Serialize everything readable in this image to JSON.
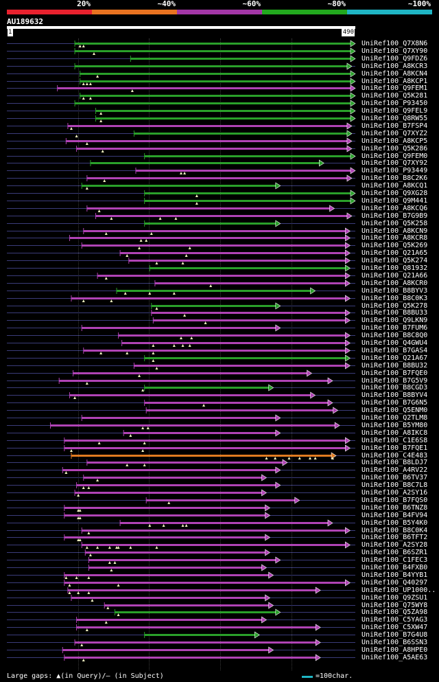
{
  "legend": {
    "segments": [
      {
        "label": "20%",
        "color": "#e8212e"
      },
      {
        "label": "~40%",
        "color": "#e87220"
      },
      {
        "label": "~60%",
        "color": "#a236a6"
      },
      {
        "label": "~80%",
        "color": "#22a81e"
      },
      {
        "label": "~100%",
        "color": "#1fb5c4"
      }
    ]
  },
  "query": {
    "id": "AU189632",
    "start_label": "1",
    "end_label": "490",
    "length": 490
  },
  "colors": {
    "purple": "#b043b5",
    "green": "#2aa02a",
    "orange": "#e07b20",
    "gap": "#3b3c7a",
    "triangle": "#f0f0c0",
    "scale": "#1fb5c4"
  },
  "hits": [
    {
      "label": "UniRef100_Q7X8N6",
      "color": "green",
      "start": 0.195,
      "end": 1.0,
      "arrow": true,
      "ticks": [
        0.21,
        0.22
      ]
    },
    {
      "label": "UniRef100_Q7XY90",
      "color": "green",
      "start": 0.195,
      "end": 1.0,
      "arrow": true,
      "ticks": [
        0.25
      ]
    },
    {
      "label": "UniRef100_Q9FDZ6",
      "color": "green",
      "start": 0.355,
      "end": 1.0,
      "arrow": true,
      "ticks": []
    },
    {
      "label": "UniRef100_A8KCR3",
      "color": "green",
      "start": 0.195,
      "end": 0.99,
      "arrow": true,
      "ticks": []
    },
    {
      "label": "UniRef100_A8KCN4",
      "color": "green",
      "start": 0.21,
      "end": 1.0,
      "arrow": true,
      "ticks": [
        0.26
      ]
    },
    {
      "label": "UniRef100_A8KCP1",
      "color": "green",
      "start": 0.21,
      "end": 1.0,
      "arrow": true,
      "ticks": [
        0.22,
        0.23,
        0.24
      ]
    },
    {
      "label": "UniRef100_Q9FEM1",
      "color": "purple",
      "start": 0.145,
      "end": 1.0,
      "arrow": true,
      "ticks": [
        0.36
      ]
    },
    {
      "label": "UniRef100_Q5K281",
      "color": "green",
      "start": 0.21,
      "end": 1.0,
      "arrow": true,
      "ticks": [
        0.22,
        0.24
      ]
    },
    {
      "label": "UniRef100_P93450",
      "color": "green",
      "start": 0.195,
      "end": 1.0,
      "arrow": true,
      "ticks": []
    },
    {
      "label": "UniRef100_Q9FEL9",
      "color": "green",
      "start": 0.255,
      "end": 1.0,
      "arrow": true,
      "ticks": [
        0.27
      ]
    },
    {
      "label": "UniRef100_Q8RW55",
      "color": "green",
      "start": 0.255,
      "end": 1.0,
      "arrow": true,
      "ticks": [
        0.27
      ]
    },
    {
      "label": "UniRef100_B7FSP4",
      "color": "purple",
      "start": 0.175,
      "end": 0.99,
      "arrow": true,
      "ticks": [
        0.185
      ]
    },
    {
      "label": "UniRef100_Q7XYZ2",
      "color": "green",
      "start": 0.365,
      "end": 0.99,
      "arrow": true,
      "ticks": [
        0.2
      ]
    },
    {
      "label": "UniRef100_A8KCP5",
      "color": "purple",
      "start": 0.17,
      "end": 0.99,
      "arrow": true,
      "ticks": [
        0.23
      ]
    },
    {
      "label": "UniRef100_Q5K286",
      "color": "purple",
      "start": 0.2,
      "end": 0.99,
      "arrow": true,
      "ticks": [
        0.275
      ]
    },
    {
      "label": "UniRef100_Q9FEM0",
      "color": "green",
      "start": 0.395,
      "end": 1.0,
      "arrow": true,
      "ticks": []
    },
    {
      "label": "UniRef100_Q7XY92",
      "color": "green",
      "start": 0.24,
      "end": 0.91,
      "arrow": true,
      "ticks": []
    },
    {
      "label": "UniRef100_P93449",
      "color": "purple",
      "start": 0.37,
      "end": 1.0,
      "arrow": true,
      "ticks": [
        0.5,
        0.51
      ]
    },
    {
      "label": "UniRef100_B8C2K6",
      "color": "purple",
      "start": 0.23,
      "end": 0.99,
      "arrow": true,
      "ticks": [
        0.28
      ]
    },
    {
      "label": "UniRef100_A8KCQ1",
      "color": "green",
      "start": 0.215,
      "end": 0.785,
      "arrow": true,
      "ticks": [
        0.23
      ]
    },
    {
      "label": "UniRef100_Q9XG28",
      "color": "green",
      "start": 0.395,
      "end": 1.0,
      "arrow": true,
      "ticks": [
        0.545
      ]
    },
    {
      "label": "UniRef100_Q9M441",
      "color": "green",
      "start": 0.395,
      "end": 1.0,
      "arrow": true,
      "ticks": [
        0.545
      ]
    },
    {
      "label": "UniRef100_A8KCQ6",
      "color": "purple",
      "start": 0.23,
      "end": 0.94,
      "arrow": true,
      "ticks": [
        0.265
      ]
    },
    {
      "label": "UniRef100_B7G9B9",
      "color": "purple",
      "start": 0.255,
      "end": 0.99,
      "arrow": true,
      "ticks": [
        0.3,
        0.44,
        0.485
      ]
    },
    {
      "label": "UniRef100_Q5K258",
      "color": "green",
      "start": 0.395,
      "end": 0.785,
      "arrow": true,
      "ticks": []
    },
    {
      "label": "UniRef100_A8KCN9",
      "color": "purple",
      "start": 0.22,
      "end": 0.985,
      "arrow": true,
      "ticks": [
        0.285,
        0.415
      ]
    },
    {
      "label": "UniRef100_A8KCR8",
      "color": "purple",
      "start": 0.18,
      "end": 0.985,
      "arrow": true,
      "ticks": [
        0.385,
        0.4
      ]
    },
    {
      "label": "UniRef100_Q5K269",
      "color": "purple",
      "start": 0.215,
      "end": 0.985,
      "arrow": true,
      "ticks": [
        0.38,
        0.525
      ]
    },
    {
      "label": "UniRef100_Q21A65",
      "color": "purple",
      "start": 0.325,
      "end": 0.985,
      "arrow": true,
      "ticks": [
        0.345,
        0.515
      ]
    },
    {
      "label": "UniRef100_Q5K274",
      "color": "purple",
      "start": 0.35,
      "end": 0.985,
      "arrow": true,
      "ticks": [
        0.43,
        0.505
      ]
    },
    {
      "label": "UniRef100_Q81932",
      "color": "green",
      "start": 0.41,
      "end": 0.985,
      "arrow": true,
      "ticks": []
    },
    {
      "label": "UniRef100_Q21A66",
      "color": "purple",
      "start": 0.26,
      "end": 0.985,
      "arrow": true,
      "ticks": [
        0.285
      ]
    },
    {
      "label": "UniRef100_A8KCR0",
      "color": "purple",
      "start": 0.425,
      "end": 0.985,
      "arrow": true,
      "ticks": [
        0.585
      ]
    },
    {
      "label": "UniRef100_B8BYV3",
      "color": "green",
      "start": 0.315,
      "end": 0.885,
      "arrow": true,
      "ticks": [
        0.34,
        0.41,
        0.48
      ]
    },
    {
      "label": "UniRef100_B8C0K3",
      "color": "purple",
      "start": 0.185,
      "end": 0.985,
      "arrow": true,
      "ticks": [
        0.22,
        0.3
      ]
    },
    {
      "label": "UniRef100_Q5K278",
      "color": "green",
      "start": 0.415,
      "end": 0.785,
      "arrow": true,
      "ticks": [
        0.43
      ]
    },
    {
      "label": "UniRef100_B8BU33",
      "color": "purple",
      "start": 0.415,
      "end": 0.985,
      "arrow": true,
      "ticks": [
        0.51
      ]
    },
    {
      "label": "UniRef100_Q9LKN9",
      "color": "purple",
      "start": 0.42,
      "end": 0.985,
      "arrow": true,
      "ticks": [
        0.57
      ]
    },
    {
      "label": "UniRef100_B7FUM6",
      "color": "purple",
      "start": 0.215,
      "end": 0.785,
      "arrow": true,
      "ticks": []
    },
    {
      "label": "UniRef100_B8C8Q0",
      "color": "purple",
      "start": 0.32,
      "end": 0.985,
      "arrow": true,
      "ticks": [
        0.5,
        0.53
      ]
    },
    {
      "label": "UniRef100_Q4GWU4",
      "color": "purple",
      "start": 0.33,
      "end": 0.985,
      "arrow": true,
      "ticks": [
        0.42,
        0.48,
        0.505,
        0.525
      ]
    },
    {
      "label": "UniRef100_B7GAS4",
      "color": "purple",
      "start": 0.22,
      "end": 0.985,
      "arrow": true,
      "ticks": [
        0.27,
        0.345,
        0.42
      ]
    },
    {
      "label": "UniRef100_Q21A67",
      "color": "green",
      "start": 0.395,
      "end": 0.985,
      "arrow": true,
      "ticks": [
        0.42
      ]
    },
    {
      "label": "UniRef100_B8BU32",
      "color": "purple",
      "start": 0.365,
      "end": 0.985,
      "arrow": true,
      "ticks": [
        0.43
      ]
    },
    {
      "label": "UniRef100_B7FQE0",
      "color": "purple",
      "start": 0.19,
      "end": 0.875,
      "arrow": true,
      "ticks": [
        0.38
      ]
    },
    {
      "label": "UniRef100_B7G5V9",
      "color": "purple",
      "start": 0.15,
      "end": 0.935,
      "arrow": true,
      "ticks": [
        0.23
      ]
    },
    {
      "label": "UniRef100_B8CGD3",
      "color": "green",
      "start": 0.395,
      "end": 0.765,
      "arrow": true,
      "ticks": [
        0.39
      ]
    },
    {
      "label": "UniRef100_B8BYV4",
      "color": "purple",
      "start": 0.18,
      "end": 0.885,
      "arrow": true,
      "ticks": [
        0.195
      ]
    },
    {
      "label": "UniRef100_B7G6N5",
      "color": "purple",
      "start": 0.395,
      "end": 0.935,
      "arrow": true,
      "ticks": [
        0.565
      ]
    },
    {
      "label": "UniRef100_Q5ENM0",
      "color": "purple",
      "start": 0.4,
      "end": 0.95,
      "arrow": true,
      "ticks": []
    },
    {
      "label": "UniRef100_Q2TLM8",
      "color": "purple",
      "start": 0.215,
      "end": 0.785,
      "arrow": true,
      "ticks": []
    },
    {
      "label": "UniRef100_B5YM80",
      "color": "purple",
      "start": 0.125,
      "end": 0.955,
      "arrow": true,
      "ticks": [
        0.39,
        0.405
      ]
    },
    {
      "label": "UniRef100_A8IKC8",
      "color": "purple",
      "start": 0.335,
      "end": 0.785,
      "arrow": true,
      "ticks": [
        0.355
      ]
    },
    {
      "label": "UniRef100_C1E6S8",
      "color": "purple",
      "start": 0.165,
      "end": 0.985,
      "arrow": true,
      "ticks": [
        0.265,
        0.395
      ]
    },
    {
      "label": "UniRef100_B7FQE1",
      "color": "purple",
      "start": 0.165,
      "end": 0.985,
      "arrow": true,
      "ticks": [
        0.185,
        0.39
      ]
    },
    {
      "label": "UniRef100_C4E483",
      "color": "orange",
      "start": 0.185,
      "end": 0.945,
      "arrow": true,
      "ticks": [
        0.745,
        0.77,
        0.81,
        0.84,
        0.87,
        0.885,
        0.935
      ]
    },
    {
      "label": "UniRef100_B8LDJ7",
      "color": "purple",
      "start": 0.23,
      "end": 0.805,
      "arrow": true,
      "ticks": [
        0.345,
        0.395
      ]
    },
    {
      "label": "UniRef100_A4RV22",
      "color": "purple",
      "start": 0.16,
      "end": 0.785,
      "arrow": true,
      "ticks": [
        0.17
      ]
    },
    {
      "label": "UniRef100_B6TV37",
      "color": "purple",
      "start": 0.22,
      "end": 0.745,
      "arrow": true,
      "ticks": [
        0.26
      ]
    },
    {
      "label": "UniRef100_B8C7L8",
      "color": "purple",
      "start": 0.2,
      "end": 0.785,
      "arrow": true,
      "ticks": [
        0.22,
        0.235
      ]
    },
    {
      "label": "UniRef100_A2SY16",
      "color": "purple",
      "start": 0.195,
      "end": 0.745,
      "arrow": true,
      "ticks": [
        0.205
      ]
    },
    {
      "label": "UniRef100_B7FQS0",
      "color": "purple",
      "start": 0.4,
      "end": 0.84,
      "arrow": true,
      "ticks": [
        0.465
      ]
    },
    {
      "label": "UniRef100_B6TNZ8",
      "color": "purple",
      "start": 0.165,
      "end": 0.755,
      "arrow": true,
      "ticks": [
        0.205,
        0.21
      ]
    },
    {
      "label": "UniRef100_B4FV94",
      "color": "purple",
      "start": 0.165,
      "end": 0.755,
      "arrow": true,
      "ticks": [
        0.205,
        0.21
      ]
    },
    {
      "label": "UniRef100_B5Y4K0",
      "color": "purple",
      "start": 0.325,
      "end": 0.935,
      "arrow": true,
      "ticks": [
        0.41,
        0.45,
        0.505,
        0.515
      ]
    },
    {
      "label": "UniRef100_B8C0K4",
      "color": "purple",
      "start": 0.215,
      "end": 0.985,
      "arrow": true,
      "ticks": [
        0.235
      ]
    },
    {
      "label": "UniRef100_B6TFT2",
      "color": "purple",
      "start": 0.165,
      "end": 0.755,
      "arrow": true,
      "ticks": [
        0.205,
        0.21
      ]
    },
    {
      "label": "UniRef100_A2SY28",
      "color": "purple",
      "start": 0.215,
      "end": 0.985,
      "arrow": true,
      "ticks": [
        0.23,
        0.26,
        0.295,
        0.315,
        0.32,
        0.355,
        0.43
      ]
    },
    {
      "label": "UniRef100_B6SZR1",
      "color": "purple",
      "start": 0.225,
      "end": 0.755,
      "arrow": true,
      "ticks": [
        0.24
      ]
    },
    {
      "label": "UniRef100_C1FEC3",
      "color": "purple",
      "start": 0.235,
      "end": 0.785,
      "arrow": true,
      "ticks": [
        0.295,
        0.31
      ]
    },
    {
      "label": "UniRef100_B4FXB0",
      "color": "purple",
      "start": 0.235,
      "end": 0.745,
      "arrow": true,
      "ticks": [
        0.3
      ]
    },
    {
      "label": "UniRef100_B4YYB1",
      "color": "purple",
      "start": 0.165,
      "end": 0.765,
      "arrow": true,
      "ticks": [
        0.17,
        0.2,
        0.235
      ]
    },
    {
      "label": "UniRef100_Q40297",
      "color": "purple",
      "start": 0.165,
      "end": 0.985,
      "arrow": true,
      "ticks": [
        0.18,
        0.32
      ]
    },
    {
      "label": "UniRef100_UP1000..",
      "color": "purple",
      "start": 0.175,
      "end": 0.9,
      "arrow": true,
      "ticks": [
        0.18,
        0.205,
        0.235
      ]
    },
    {
      "label": "UniRef100_Q9ZSU1",
      "color": "purple",
      "start": 0.185,
      "end": 0.755,
      "arrow": true,
      "ticks": [
        0.245
      ]
    },
    {
      "label": "UniRef100_Q75WY8",
      "color": "purple",
      "start": 0.28,
      "end": 0.765,
      "arrow": true,
      "ticks": [
        0.29
      ]
    },
    {
      "label": "UniRef100_Q5ZA98",
      "color": "green",
      "start": 0.31,
      "end": 0.785,
      "arrow": true,
      "ticks": [
        0.32
      ]
    },
    {
      "label": "UniRef100_C5YAG3",
      "color": "purple",
      "start": 0.2,
      "end": 0.745,
      "arrow": true,
      "ticks": [
        0.285
      ]
    },
    {
      "label": "UniRef100_C5XW47",
      "color": "purple",
      "start": 0.2,
      "end": 0.9,
      "arrow": true,
      "ticks": [
        0.23
      ]
    },
    {
      "label": "UniRef100_B7G4U8",
      "color": "green",
      "start": 0.395,
      "end": 0.725,
      "arrow": true,
      "ticks": []
    },
    {
      "label": "UniRef100_B6SSN3",
      "color": "purple",
      "start": 0.195,
      "end": 0.9,
      "arrow": true,
      "ticks": [
        0.215
      ]
    },
    {
      "label": "UniRef100_A8HPE0",
      "color": "purple",
      "start": 0.16,
      "end": 0.765,
      "arrow": true,
      "ticks": []
    },
    {
      "label": "UniRef100_A5AE63",
      "color": "purple",
      "start": 0.165,
      "end": 0.9,
      "arrow": true,
      "ticks": [
        0.22
      ]
    }
  ],
  "footer": {
    "gaps_text": "Large gaps: ▲(in Query)/– (in Subject)",
    "scale_text": "=100char."
  }
}
